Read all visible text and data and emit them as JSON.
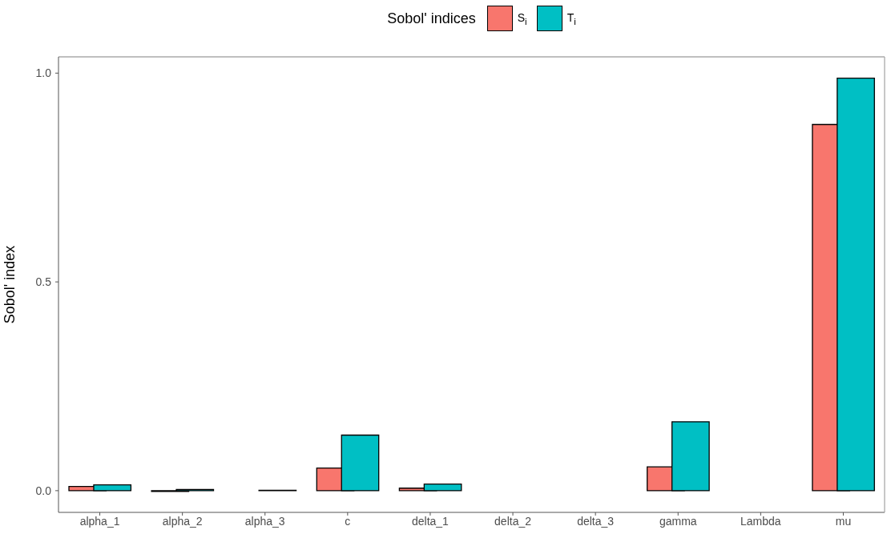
{
  "chart_data": {
    "type": "bar",
    "legend_title": "Sobol' indices",
    "ylabel": "Sobol' index",
    "categories": [
      "alpha_1",
      "alpha_2",
      "alpha_3",
      "c",
      "delta_1",
      "delta_2",
      "delta_3",
      "gamma",
      "Lambda",
      "mu"
    ],
    "series": [
      {
        "name": "S$_{i}$",
        "color": "#f8766d",
        "values": [
          0.01,
          -0.002,
          0,
          0.054,
          0.006,
          0,
          0,
          0.057,
          0,
          0.877
        ]
      },
      {
        "name": "T$_{i}$",
        "color": "#00bfc4",
        "values": [
          0.014,
          0.003,
          0.001,
          0.133,
          0.016,
          0,
          0,
          0.165,
          0,
          0.988
        ]
      }
    ],
    "ylim": [
      -0.052,
      1.039
    ],
    "yticks": [
      {
        "value": 0,
        "label": "0.0"
      },
      {
        "value": 0.5,
        "label": "0.5"
      },
      {
        "value": 1,
        "label": "1.0"
      }
    ],
    "legend": "top"
  }
}
